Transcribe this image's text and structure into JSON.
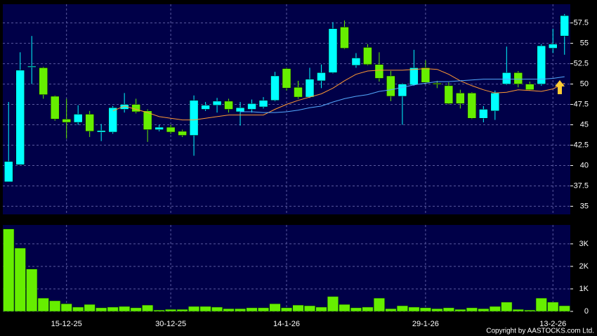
{
  "chart_data": [
    {
      "type": "candlestick",
      "open": [
        38.0,
        40.1,
        52.1,
        52.0,
        48.5,
        45.7,
        45.3,
        46.3,
        44.1,
        44.1,
        46.9,
        47.5,
        46.7,
        44.4,
        44.7,
        44.2,
        43.7,
        46.9,
        47.4,
        47.9,
        46.6,
        46.9,
        47.2,
        48.0,
        51.9,
        49.6,
        48.4,
        50.4,
        51.4,
        57.0,
        52.3,
        54.5,
        52.4,
        51.0,
        48.5,
        49.9,
        52.0,
        50.1,
        49.8,
        48.9,
        48.9,
        45.8,
        46.7,
        50.0,
        51.4,
        50.0,
        50.0,
        54.4,
        55.9
      ],
      "high": [
        47.8,
        53.9,
        55.9,
        52.1,
        48.6,
        48.2,
        47.4,
        46.7,
        45.1,
        47.3,
        48.9,
        48.2,
        46.9,
        45.0,
        45.0,
        44.4,
        48.6,
        47.8,
        48.3,
        48.2,
        47.8,
        48.1,
        48.4,
        51.5,
        52.0,
        50.4,
        52.0,
        52.4,
        57.6,
        57.8,
        53.8,
        54.9,
        53.9,
        51.6,
        50.1,
        54.2,
        52.9,
        50.4,
        50.2,
        49.3,
        49.0,
        47.3,
        49.2,
        54.6,
        51.6,
        50.3,
        54.9,
        56.8,
        58.6
      ],
      "low": [
        38.0,
        40.1,
        50.0,
        48.2,
        45.5,
        43.3,
        45.0,
        43.5,
        43.0,
        43.9,
        46.5,
        46.4,
        42.9,
        44.2,
        43.9,
        43.5,
        41.2,
        46.7,
        46.5,
        46.5,
        44.9,
        46.5,
        47.0,
        47.9,
        49.2,
        48.2,
        48.3,
        49.5,
        51.3,
        54.3,
        52.0,
        52.3,
        50.3,
        47.9,
        45.0,
        49.8,
        50.0,
        49.5,
        47.5,
        47.0,
        45.7,
        45.3,
        45.6,
        49.9,
        49.6,
        49.2,
        49.8,
        53.8,
        53.6
      ],
      "close": [
        40.5,
        51.7,
        52.2,
        48.7,
        45.7,
        45.3,
        46.3,
        44.2,
        44.3,
        47.1,
        47.5,
        46.6,
        44.4,
        44.7,
        44.1,
        43.7,
        48.0,
        47.4,
        47.9,
        46.9,
        47.1,
        47.6,
        48.0,
        51.0,
        49.5,
        48.4,
        50.6,
        51.4,
        56.8,
        54.4,
        53.2,
        52.4,
        50.7,
        48.5,
        50.0,
        52.0,
        50.2,
        50.0,
        47.6,
        47.6,
        45.8,
        46.9,
        48.9,
        51.4,
        50.0,
        49.3,
        54.7,
        54.9,
        58.4
      ],
      "up_color": "#00ffff",
      "down_color": "#66ee00",
      "series": [
        {
          "color": "#ff9933",
          "values": [
            null,
            null,
            null,
            null,
            null,
            null,
            null,
            null,
            null,
            46.7,
            47.3,
            46.9,
            46.5,
            46.0,
            45.8,
            45.6,
            45.6,
            45.8,
            46.0,
            46.2,
            46.2,
            46.2,
            46.2,
            46.9,
            47.5,
            48.0,
            48.4,
            48.8,
            49.5,
            50.4,
            51.2,
            51.6,
            51.7,
            51.7,
            51.7,
            51.8,
            51.9,
            51.8,
            51.2,
            50.4,
            49.8,
            49.3,
            48.9,
            49.0,
            49.3,
            49.2,
            49.1,
            49.4,
            50.1
          ]
        },
        {
          "color": "#55aaff",
          "values": [
            null,
            null,
            null,
            null,
            null,
            null,
            null,
            null,
            null,
            null,
            null,
            null,
            null,
            null,
            null,
            null,
            null,
            null,
            null,
            null,
            46.6,
            46.6,
            46.5,
            46.5,
            46.6,
            46.8,
            47.1,
            47.3,
            47.8,
            48.2,
            48.5,
            48.7,
            49.1,
            49.3,
            49.6,
            49.9,
            50.1,
            50.3,
            50.3,
            50.4,
            50.5,
            50.6,
            50.6,
            50.6,
            50.6,
            50.6,
            50.6,
            50.7,
            50.9
          ]
        }
      ],
      "ylim": [
        34,
        59.8
      ],
      "yticks": [
        35,
        37.5,
        40,
        42.5,
        45,
        47.5,
        50,
        52.5,
        55,
        57.5
      ],
      "grid": true
    },
    {
      "type": "bar",
      "categories": [
        null,
        null,
        null,
        null,
        null,
        "15-12-25",
        null,
        null,
        null,
        null,
        null,
        null,
        null,
        null,
        "30-12-25",
        null,
        null,
        null,
        null,
        null,
        null,
        null,
        null,
        null,
        "14-1-26",
        null,
        null,
        null,
        null,
        null,
        null,
        null,
        null,
        null,
        null,
        null,
        "29-1-26",
        null,
        null,
        null,
        null,
        null,
        null,
        null,
        null,
        null,
        null,
        "13-2-26",
        null
      ],
      "values": [
        3660,
        2810,
        1880,
        590,
        470,
        340,
        190,
        310,
        160,
        190,
        220,
        160,
        280,
        60,
        90,
        90,
        220,
        220,
        190,
        120,
        120,
        160,
        160,
        340,
        160,
        280,
        250,
        190,
        660,
        310,
        160,
        190,
        590,
        120,
        250,
        190,
        160,
        120,
        160,
        90,
        160,
        120,
        220,
        410,
        90,
        60,
        590,
        410,
        250
      ],
      "color": "#66ee00",
      "ylim": [
        0,
        3840
      ],
      "yticks": [
        0,
        {
          "value": 1000,
          "label": "1K"
        },
        {
          "value": 2000,
          "label": "2K"
        },
        {
          "value": 3000,
          "label": "3K"
        }
      ],
      "grid": true
    }
  ],
  "copyright": "Copyright by AASTOCKS.com Ltd."
}
